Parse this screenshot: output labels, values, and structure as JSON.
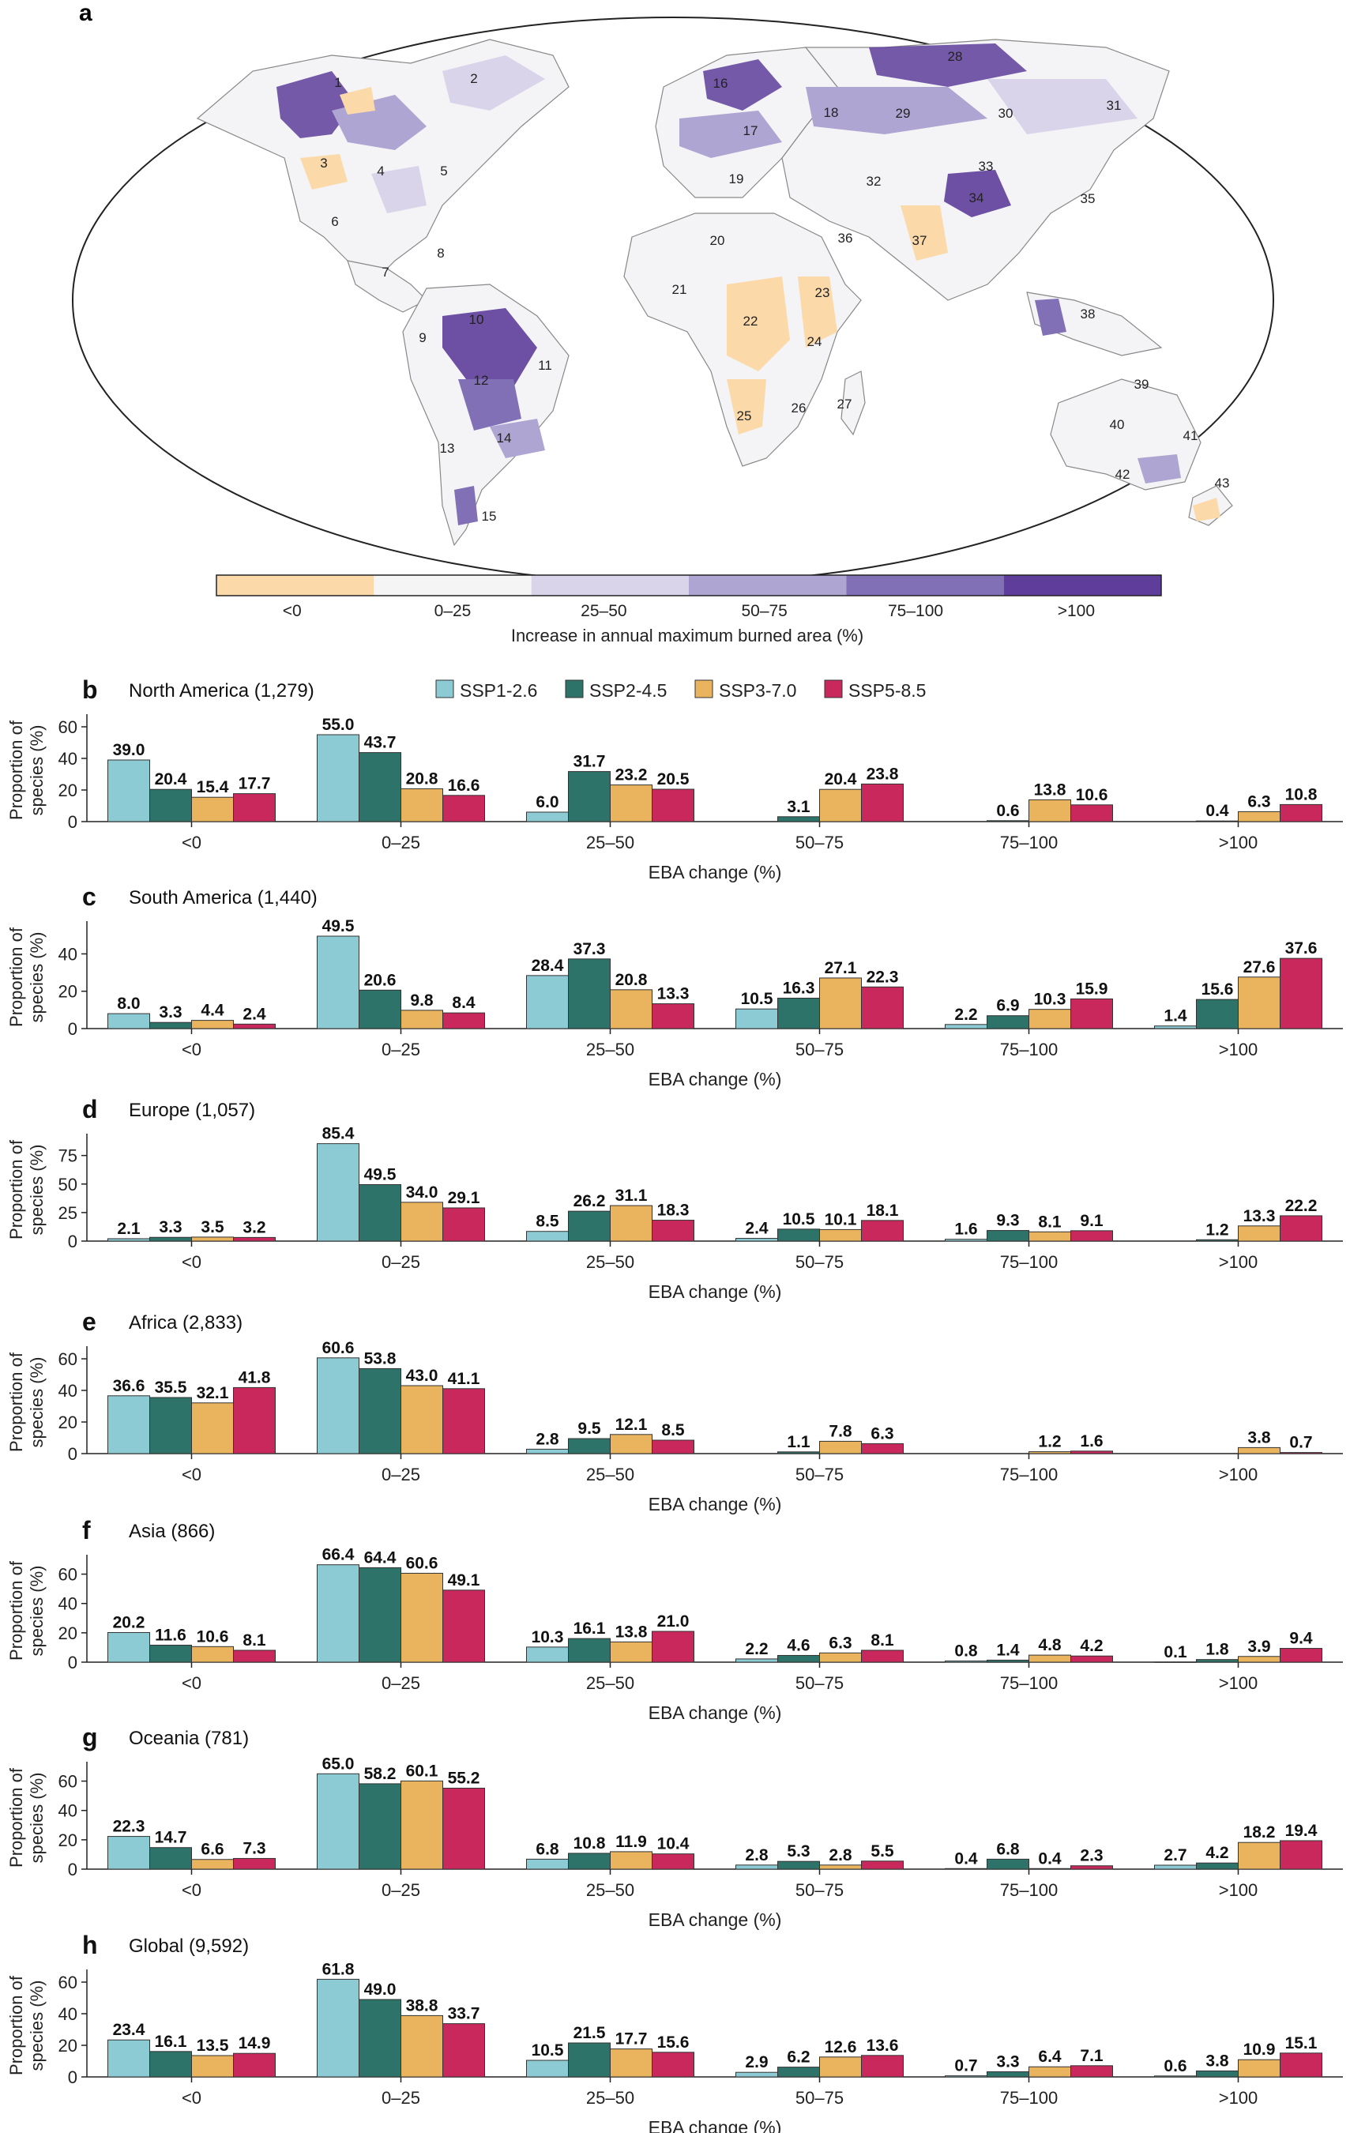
{
  "panel_a": {
    "letter": "a",
    "colorbar_label": "Increase in annual maximum burned area (%)",
    "colorbar_ticks": [
      "<0",
      "0–25",
      "25–50",
      "50–75",
      "75–100",
      ">100"
    ],
    "colorbar_colors": [
      "#fbd9a9",
      "#f5f5f5",
      "#d9d4ea",
      "#aea5d3",
      "#8270b7",
      "#5e3d9b"
    ],
    "region_numbers": [
      "1",
      "2",
      "3",
      "4",
      "5",
      "6",
      "7",
      "8",
      "9",
      "10",
      "11",
      "12",
      "13",
      "14",
      "15",
      "16",
      "17",
      "18",
      "19",
      "20",
      "21",
      "22",
      "23",
      "24",
      "25",
      "26",
      "27",
      "28",
      "29",
      "30",
      "31",
      "32",
      "33",
      "34",
      "35",
      "36",
      "37",
      "38",
      "39",
      "40",
      "41",
      "42",
      "43"
    ]
  },
  "legend": [
    "SSP1-2.6",
    "SSP2-4.5",
    "SSP3-7.0",
    "SSP5-8.5"
  ],
  "colors": {
    "ssp126": "#8ccbd3",
    "ssp245": "#2e7369",
    "ssp370": "#eab45e",
    "ssp585": "#c8285c"
  },
  "chart_data": [
    {
      "type": "bar",
      "letter": "b",
      "title": "North America (1,279)",
      "categories": [
        "<0",
        "0–25",
        "25–50",
        "50–75",
        "75–100",
        ">100"
      ],
      "xlabel": "EBA change (%)",
      "ylabel": "Proportion of species (%)",
      "ylim": [
        0,
        65
      ],
      "yticks": [
        0,
        20,
        40,
        60
      ],
      "series": [
        {
          "name": "SSP1-2.6",
          "values": [
            39.0,
            55.0,
            6.0,
            null,
            null,
            null
          ]
        },
        {
          "name": "SSP2-4.5",
          "values": [
            20.4,
            43.7,
            31.7,
            3.1,
            0.6,
            0.4
          ]
        },
        {
          "name": "SSP3-7.0",
          "values": [
            15.4,
            20.8,
            23.2,
            20.4,
            13.8,
            6.3
          ]
        },
        {
          "name": "SSP5-8.5",
          "values": [
            17.7,
            16.6,
            20.5,
            23.8,
            10.6,
            10.8
          ]
        }
      ]
    },
    {
      "type": "bar",
      "letter": "c",
      "title": "South America (1,440)",
      "categories": [
        "<0",
        "0–25",
        "25–50",
        "50–75",
        "75–100",
        ">100"
      ],
      "xlabel": "EBA change (%)",
      "ylabel": "Proportion of species (%)",
      "ylim": [
        0,
        55
      ],
      "yticks": [
        0,
        20,
        40
      ],
      "series": [
        {
          "name": "SSP1-2.6",
          "values": [
            8.0,
            49.5,
            28.4,
            10.5,
            2.2,
            1.4
          ]
        },
        {
          "name": "SSP2-4.5",
          "values": [
            3.3,
            20.6,
            37.3,
            16.3,
            6.9,
            15.6
          ]
        },
        {
          "name": "SSP3-7.0",
          "values": [
            4.4,
            9.8,
            20.8,
            27.1,
            10.3,
            27.6
          ]
        },
        {
          "name": "SSP5-8.5",
          "values": [
            2.4,
            8.4,
            13.3,
            22.3,
            15.9,
            37.6
          ]
        }
      ]
    },
    {
      "type": "bar",
      "letter": "d",
      "title": "Europe (1,057)",
      "categories": [
        "<0",
        "0–25",
        "25–50",
        "50–75",
        "75–100",
        ">100"
      ],
      "xlabel": "EBA change (%)",
      "ylabel": "Proportion of species (%)",
      "ylim": [
        0,
        90
      ],
      "yticks": [
        0,
        25,
        50,
        75
      ],
      "series": [
        {
          "name": "SSP1-2.6",
          "values": [
            2.1,
            85.4,
            8.5,
            2.4,
            1.6,
            null
          ]
        },
        {
          "name": "SSP2-4.5",
          "values": [
            3.3,
            49.5,
            26.2,
            10.5,
            9.3,
            1.2
          ]
        },
        {
          "name": "SSP3-7.0",
          "values": [
            3.5,
            34.0,
            31.1,
            10.1,
            8.1,
            13.3
          ]
        },
        {
          "name": "SSP5-8.5",
          "values": [
            3.2,
            29.1,
            18.3,
            18.1,
            9.1,
            22.2
          ]
        }
      ]
    },
    {
      "type": "bar",
      "letter": "e",
      "title": "Africa (2,833)",
      "categories": [
        "<0",
        "0–25",
        "25–50",
        "50–75",
        "75–100",
        ">100"
      ],
      "xlabel": "EBA change (%)",
      "ylabel": "Proportion of species (%)",
      "ylim": [
        0,
        65
      ],
      "yticks": [
        0,
        20,
        40,
        60
      ],
      "series": [
        {
          "name": "SSP1-2.6",
          "values": [
            36.6,
            60.6,
            2.8,
            null,
            null,
            null
          ]
        },
        {
          "name": "SSP2-4.5",
          "values": [
            35.5,
            53.8,
            9.5,
            1.1,
            null,
            null
          ]
        },
        {
          "name": "SSP3-7.0",
          "values": [
            32.1,
            43.0,
            12.1,
            7.8,
            1.2,
            3.8
          ]
        },
        {
          "name": "SSP5-8.5",
          "values": [
            41.8,
            41.1,
            8.5,
            6.3,
            1.6,
            0.7
          ]
        }
      ]
    },
    {
      "type": "bar",
      "letter": "f",
      "title": "Asia (866)",
      "categories": [
        "<0",
        "0–25",
        "25–50",
        "50–75",
        "75–100",
        ">100"
      ],
      "xlabel": "EBA change (%)",
      "ylabel": "Proportion of species (%)",
      "ylim": [
        0,
        70
      ],
      "yticks": [
        0,
        20,
        40,
        60
      ],
      "series": [
        {
          "name": "SSP1-2.6",
          "values": [
            20.2,
            66.4,
            10.3,
            2.2,
            0.8,
            0.1
          ]
        },
        {
          "name": "SSP2-4.5",
          "values": [
            11.6,
            64.4,
            16.1,
            4.6,
            1.4,
            1.8
          ]
        },
        {
          "name": "SSP3-7.0",
          "values": [
            10.6,
            60.6,
            13.8,
            6.3,
            4.8,
            3.9
          ]
        },
        {
          "name": "SSP5-8.5",
          "values": [
            8.1,
            49.1,
            21.0,
            8.1,
            4.2,
            9.4
          ]
        }
      ]
    },
    {
      "type": "bar",
      "letter": "g",
      "title": "Oceania (781)",
      "categories": [
        "<0",
        "0–25",
        "25–50",
        "50–75",
        "75–100",
        ">100"
      ],
      "xlabel": "EBA change (%)",
      "ylabel": "Proportion of species (%)",
      "ylim": [
        0,
        70
      ],
      "yticks": [
        0,
        20,
        40,
        60
      ],
      "series": [
        {
          "name": "SSP1-2.6",
          "values": [
            22.3,
            65.0,
            6.8,
            2.8,
            0.4,
            2.7
          ]
        },
        {
          "name": "SSP2-4.5",
          "values": [
            14.7,
            58.2,
            10.8,
            5.3,
            6.8,
            4.2
          ]
        },
        {
          "name": "SSP3-7.0",
          "values": [
            6.6,
            60.1,
            11.9,
            2.8,
            0.4,
            18.2
          ]
        },
        {
          "name": "SSP5-8.5",
          "values": [
            7.3,
            55.2,
            10.4,
            5.5,
            2.3,
            19.4
          ]
        }
      ]
    },
    {
      "type": "bar",
      "letter": "h",
      "title": "Global (9,592)",
      "categories": [
        "<0",
        "0–25",
        "25–50",
        "50–75",
        "75–100",
        ">100"
      ],
      "xlabel": "EBA change (%)",
      "ylabel": "Proportion of species (%)",
      "ylim": [
        0,
        65
      ],
      "yticks": [
        0,
        20,
        40,
        60
      ],
      "series": [
        {
          "name": "SSP1-2.6",
          "values": [
            23.4,
            61.8,
            10.5,
            2.9,
            0.7,
            0.6
          ]
        },
        {
          "name": "SSP2-4.5",
          "values": [
            16.1,
            49.0,
            21.5,
            6.2,
            3.3,
            3.8
          ]
        },
        {
          "name": "SSP3-7.0",
          "values": [
            13.5,
            38.8,
            17.7,
            12.6,
            6.4,
            10.9
          ]
        },
        {
          "name": "SSP5-8.5",
          "values": [
            14.9,
            33.7,
            15.6,
            13.6,
            7.1,
            15.1
          ]
        }
      ]
    }
  ]
}
